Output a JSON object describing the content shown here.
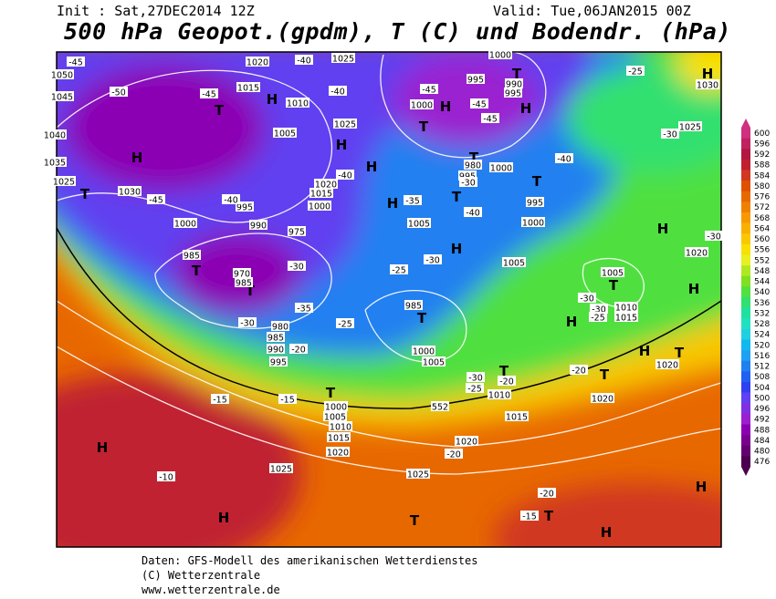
{
  "header": {
    "init": "Init : Sat,27DEC2014 12Z",
    "valid": "Valid: Tue,06JAN2015 00Z",
    "title": "500 hPa Geopot.(gpdm), T (C) und Bodendr. (hPa)"
  },
  "footer": [
    "Daten: GFS-Modell des amerikanischen Wetterdienstes",
    "(C) Wetterzentrale",
    "www.wetterzentrale.de"
  ],
  "colorbar": {
    "levels": [
      476,
      480,
      484,
      488,
      492,
      496,
      500,
      504,
      508,
      512,
      516,
      520,
      524,
      528,
      532,
      536,
      540,
      544,
      548,
      552,
      556,
      560,
      564,
      568,
      572,
      576,
      580,
      584,
      588,
      592,
      596,
      600
    ],
    "colors": [
      "#4b0050",
      "#640070",
      "#7a0090",
      "#8c00b4",
      "#9a20d0",
      "#8030e0",
      "#6040f0",
      "#3040f0",
      "#2060f0",
      "#2080f0",
      "#20a0f0",
      "#10b8f0",
      "#20d0e0",
      "#20e0c0",
      "#20e0a0",
      "#30e070",
      "#50e040",
      "#80e020",
      "#b0e820",
      "#e8f020",
      "#f8e000",
      "#f8c800",
      "#f8b000",
      "#f89800",
      "#f08000",
      "#e86800",
      "#e05000",
      "#d03820",
      "#c02030",
      "#b01840",
      "#c02060",
      "#d03080"
    ]
  },
  "map": {
    "labels": [
      "H",
      "H",
      "H",
      "H",
      "H",
      "H",
      "H",
      "H",
      "H",
      "H",
      "H",
      "H",
      "H",
      "H",
      "H",
      "H",
      "H",
      "T",
      "T",
      "T",
      "T",
      "T",
      "T",
      "T",
      "T",
      "T",
      "T",
      "T",
      "T",
      "T",
      "T",
      "T",
      "T",
      "T",
      "1045",
      "1050",
      "1040",
      "1035",
      "1025",
      "1030",
      "1020",
      "1015",
      "1010",
      "1005",
      "1025",
      "1025",
      "1020",
      "1015",
      "1000",
      "995",
      "990",
      "975",
      "1000",
      "985",
      "970",
      "985",
      "980",
      "985",
      "990",
      "995",
      "1000",
      "1005",
      "1010",
      "1015",
      "1020",
      "1025",
      "1025",
      "1020",
      "1015",
      "1010",
      "985",
      "1000",
      "1005",
      "1005",
      "1005",
      "1000",
      "995",
      "1000",
      "980",
      "995",
      "1000",
      "995",
      "1000",
      "990",
      "995",
      "1005",
      "1010",
      "1015",
      "1020",
      "1025",
      "1020",
      "1020",
      "552",
      "1030",
      "-45",
      "-50",
      "-45",
      "-45",
      "-40",
      "-30",
      "-35",
      "-30",
      "-25",
      "-20",
      "-40",
      "-40",
      "-40",
      "-35",
      "-30",
      "-40",
      "-25",
      "-30",
      "-45",
      "-45",
      "-45",
      "-40",
      "-30",
      "-25",
      "-30",
      "-30",
      "-30",
      "-25",
      "-20",
      "-20",
      "-30",
      "-25",
      "-15",
      "-15",
      "-10",
      "-20",
      "-20",
      "-15"
    ]
  }
}
